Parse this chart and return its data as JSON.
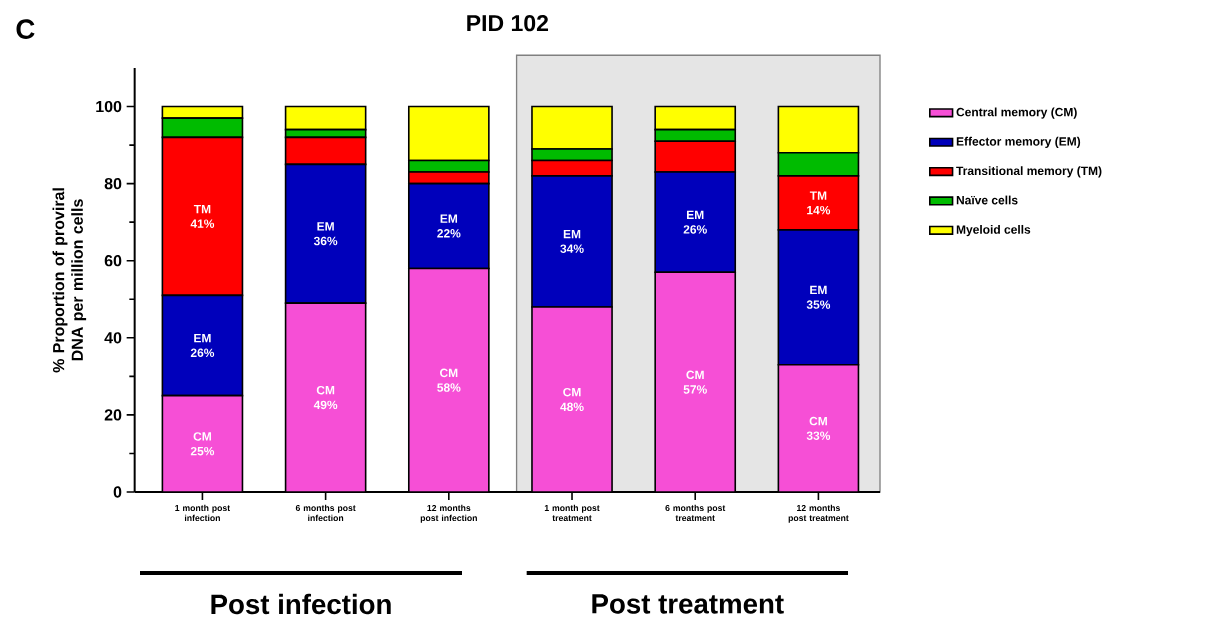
{
  "chart_data": {
    "type": "bar",
    "stacked": true,
    "title": "PID 102",
    "ylabel": "% Proportion of proviral DNA per million cells",
    "categories": [
      "1 month post infection",
      "6 months post infection",
      "12 months post infection",
      "1 month post treatment",
      "6 months post treatment",
      "12 months post treatment"
    ],
    "series": [
      {
        "name": "Central memory (CM)",
        "color": "#f64fd6",
        "values": [
          25,
          49,
          58,
          48,
          57,
          33
        ],
        "value_labels": [
          "CM 25%",
          "CM 49%",
          "CM 58%",
          "CM 48%",
          "CM 57%",
          "CM 33%"
        ]
      },
      {
        "name": "Effector memory (EM)",
        "color": "#0000bb",
        "values": [
          26,
          36,
          22,
          34,
          26,
          35
        ],
        "value_labels": [
          "EM 26%",
          "EM 36%",
          "EM 22%",
          "EM 34%",
          "EM 26%",
          "EM 35%"
        ]
      },
      {
        "name": "Transitional memory (TM)",
        "color": "#ff0000",
        "values": [
          41,
          7,
          3,
          4,
          8,
          14
        ],
        "value_labels": [
          "TM 41%",
          null,
          null,
          null,
          null,
          "TM 14%"
        ]
      },
      {
        "name": "Naïve cells",
        "color": "#00bb00",
        "values": [
          5,
          2,
          3,
          3,
          3,
          6
        ]
      },
      {
        "name": "Myeloid cells",
        "color": "#ffff00",
        "values": [
          3,
          6,
          14,
          11,
          6,
          12
        ]
      }
    ],
    "ylim": [
      0,
      110
    ],
    "yticks": [
      0,
      20,
      40,
      60,
      80,
      100
    ],
    "grid": false,
    "legend": "right",
    "annotations": [
      "C",
      "Post infection",
      "Post treatment"
    ]
  }
}
